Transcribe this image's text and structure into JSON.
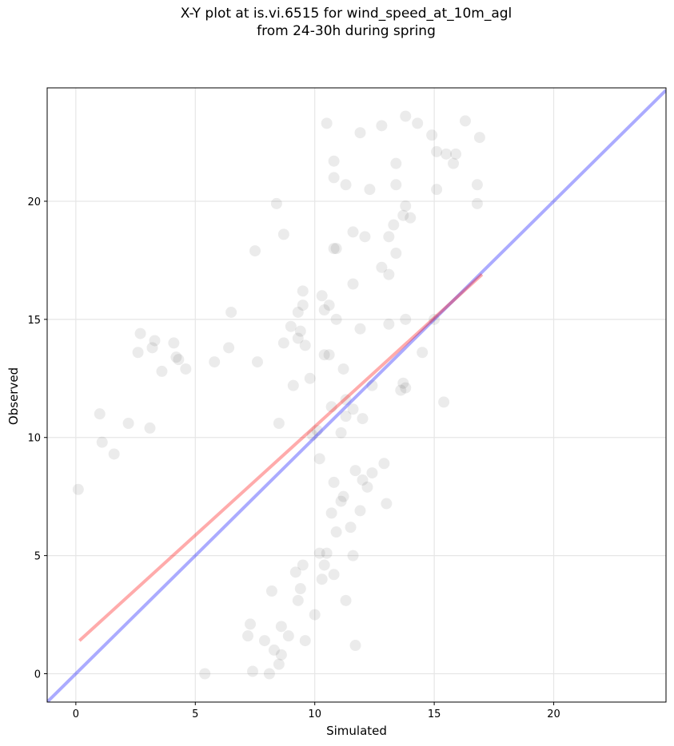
{
  "chart_data": {
    "type": "scatter",
    "title_line1": "X-Y plot at is.vi.6515 for wind_speed_at_10m_agl",
    "title_line2": "from 24-30h during spring",
    "xlabel": "Simulated",
    "ylabel": "Observed",
    "xlim": [
      -1.2,
      24.7
    ],
    "ylim": [
      -1.2,
      24.8
    ],
    "xticks": [
      0,
      5,
      10,
      15,
      20
    ],
    "yticks": [
      0,
      5,
      10,
      15,
      20
    ],
    "grid": true,
    "colors": {
      "points": "#000000",
      "fit": "#ff0000",
      "identity": "#0000ff",
      "grid": "#e6e6e6"
    },
    "regression_line": {
      "x": [
        0.15,
        17.0
      ],
      "y": [
        1.4,
        16.9
      ]
    },
    "identity_line": {
      "x": [
        -1.2,
        24.7
      ],
      "y": [
        -1.2,
        24.7
      ]
    },
    "points": [
      [
        10.5,
        23.3
      ],
      [
        11.9,
        22.9
      ],
      [
        12.8,
        23.2
      ],
      [
        13.8,
        23.6
      ],
      [
        14.3,
        23.3
      ],
      [
        14.9,
        22.8
      ],
      [
        15.1,
        22.1
      ],
      [
        15.5,
        22.0
      ],
      [
        15.9,
        22.0
      ],
      [
        16.3,
        23.4
      ],
      [
        16.9,
        22.7
      ],
      [
        15.8,
        21.6
      ],
      [
        10.8,
        21.7
      ],
      [
        13.4,
        21.6
      ],
      [
        10.8,
        21.0
      ],
      [
        11.3,
        20.7
      ],
      [
        12.3,
        20.5
      ],
      [
        13.4,
        20.7
      ],
      [
        15.1,
        20.5
      ],
      [
        16.8,
        20.7
      ],
      [
        16.8,
        19.9
      ],
      [
        8.4,
        19.9
      ],
      [
        13.8,
        19.8
      ],
      [
        14.0,
        19.3
      ],
      [
        13.7,
        19.4
      ],
      [
        13.3,
        19.0
      ],
      [
        8.7,
        18.6
      ],
      [
        11.6,
        18.7
      ],
      [
        12.1,
        18.5
      ],
      [
        13.1,
        18.5
      ],
      [
        10.8,
        18.0
      ],
      [
        10.9,
        18.0
      ],
      [
        7.5,
        17.9
      ],
      [
        13.4,
        17.8
      ],
      [
        12.8,
        17.2
      ],
      [
        13.1,
        16.9
      ],
      [
        11.6,
        16.5
      ],
      [
        9.5,
        16.2
      ],
      [
        10.3,
        16.0
      ],
      [
        9.5,
        15.6
      ],
      [
        10.6,
        15.6
      ],
      [
        10.4,
        15.4
      ],
      [
        9.3,
        15.3
      ],
      [
        6.5,
        15.3
      ],
      [
        10.9,
        15.0
      ],
      [
        13.1,
        14.8
      ],
      [
        13.8,
        15.0
      ],
      [
        15.0,
        15.0
      ],
      [
        11.9,
        14.6
      ],
      [
        9.0,
        14.7
      ],
      [
        9.4,
        14.5
      ],
      [
        2.7,
        14.4
      ],
      [
        3.3,
        14.1
      ],
      [
        4.1,
        14.0
      ],
      [
        3.2,
        13.8
      ],
      [
        8.7,
        14.0
      ],
      [
        9.3,
        14.2
      ],
      [
        9.6,
        13.9
      ],
      [
        6.4,
        13.8
      ],
      [
        5.8,
        13.2
      ],
      [
        7.6,
        13.2
      ],
      [
        2.6,
        13.6
      ],
      [
        14.5,
        13.6
      ],
      [
        3.6,
        12.8
      ],
      [
        4.6,
        12.9
      ],
      [
        4.2,
        13.4
      ],
      [
        4.3,
        13.3
      ],
      [
        10.4,
        13.5
      ],
      [
        10.6,
        13.5
      ],
      [
        11.2,
        12.9
      ],
      [
        12.4,
        12.2
      ],
      [
        13.7,
        12.3
      ],
      [
        13.6,
        12.0
      ],
      [
        13.8,
        12.1
      ],
      [
        15.4,
        11.5
      ],
      [
        11.3,
        11.6
      ],
      [
        11.6,
        11.2
      ],
      [
        11.3,
        10.9
      ],
      [
        12.0,
        10.8
      ],
      [
        1.0,
        11.0
      ],
      [
        2.2,
        10.6
      ],
      [
        0.1,
        7.8
      ],
      [
        1.1,
        9.8
      ],
      [
        1.6,
        9.3
      ],
      [
        3.1,
        10.4
      ],
      [
        12.4,
        8.5
      ],
      [
        12.9,
        8.9
      ],
      [
        11.2,
        7.5
      ],
      [
        13.0,
        7.2
      ],
      [
        11.9,
        6.9
      ],
      [
        10.7,
        6.8
      ],
      [
        10.9,
        6.0
      ],
      [
        11.5,
        6.2
      ],
      [
        10.8,
        4.2
      ],
      [
        11.6,
        5.0
      ],
      [
        10.4,
        4.6
      ],
      [
        10.0,
        2.5
      ],
      [
        11.3,
        3.1
      ],
      [
        9.6,
        1.4
      ],
      [
        11.7,
        1.2
      ],
      [
        8.6,
        0.8
      ],
      [
        8.5,
        0.4
      ],
      [
        7.4,
        0.1
      ],
      [
        8.1,
        0.0
      ],
      [
        8.3,
        1.0
      ],
      [
        8.9,
        1.6
      ],
      [
        7.2,
        1.6
      ],
      [
        5.4,
        0.0
      ],
      [
        9.3,
        3.1
      ],
      [
        7.9,
        1.4
      ],
      [
        7.3,
        2.1
      ],
      [
        8.6,
        2.0
      ],
      [
        9.2,
        4.3
      ],
      [
        9.5,
        4.6
      ],
      [
        9.4,
        3.6
      ],
      [
        10.3,
        4.0
      ],
      [
        10.5,
        5.1
      ],
      [
        10.2,
        5.1
      ],
      [
        8.2,
        3.5
      ],
      [
        12.2,
        7.9
      ],
      [
        12.0,
        8.2
      ],
      [
        11.7,
        8.6
      ],
      [
        10.2,
        9.1
      ],
      [
        10.8,
        8.1
      ],
      [
        11.1,
        7.3
      ],
      [
        9.9,
        10.1
      ],
      [
        10.1,
        10.3
      ],
      [
        11.1,
        10.2
      ],
      [
        10.7,
        11.3
      ],
      [
        8.5,
        10.6
      ],
      [
        9.1,
        12.2
      ],
      [
        9.8,
        12.5
      ]
    ]
  }
}
